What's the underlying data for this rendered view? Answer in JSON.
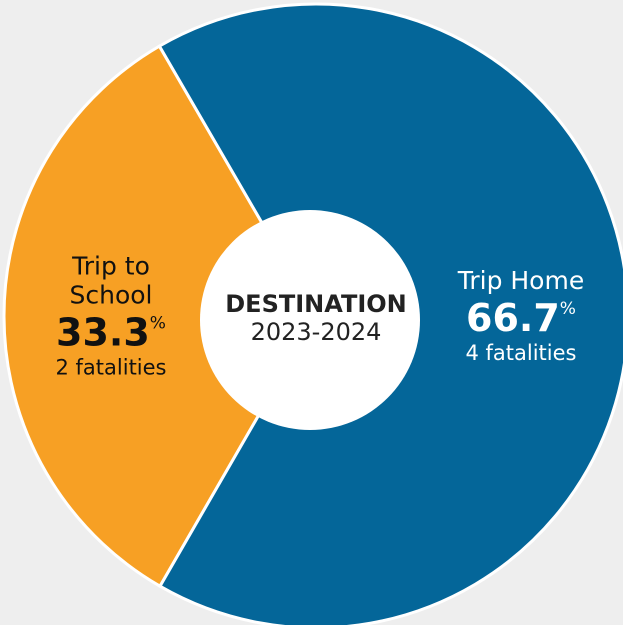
{
  "chart_data": {
    "type": "donut",
    "title": "DESTINATION",
    "subtitle": "2023-2024",
    "categories": [
      "Trip to School",
      "Trip Home"
    ],
    "values": [
      33.3,
      66.7
    ],
    "value_unit": "%",
    "details": [
      "2 fatalities",
      "4 fatalities"
    ],
    "colors": [
      "#f7a024",
      "#046699"
    ],
    "label_colors": [
      "#111111",
      "#ffffff"
    ]
  }
}
